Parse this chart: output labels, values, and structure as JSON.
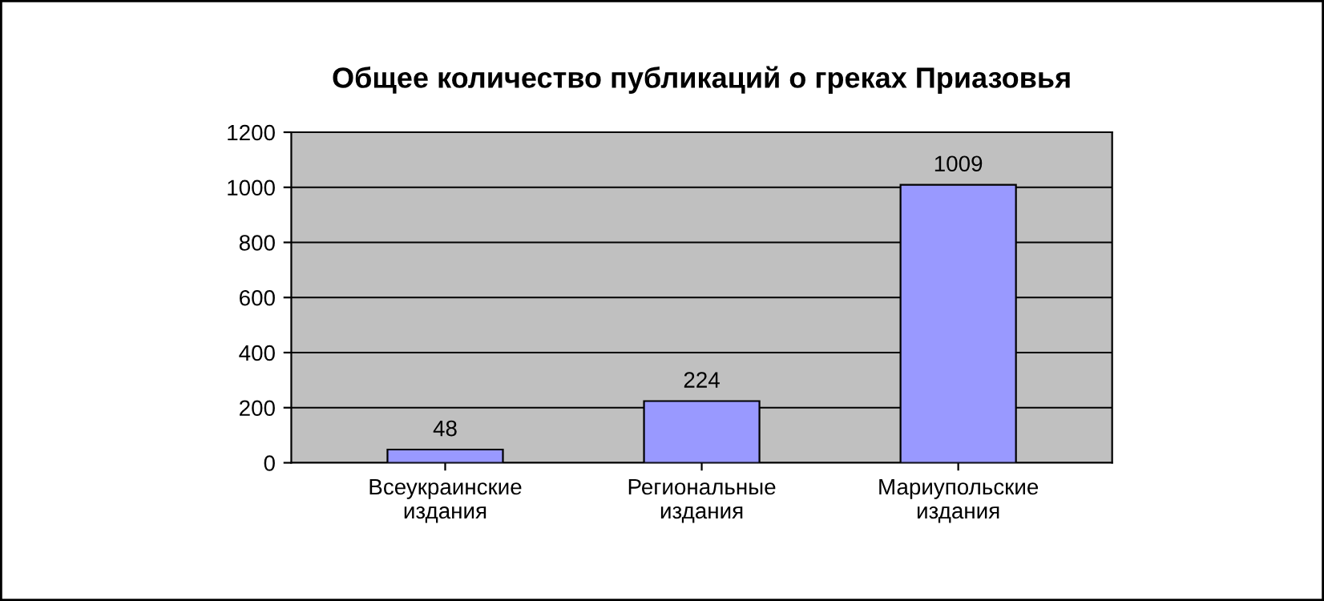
{
  "chart_data": {
    "type": "bar",
    "title": "Общее количество публикаций о греках Приазовья",
    "categories": [
      "Всеукраинские\nиздания",
      "Региональные\nиздания",
      "Мариупольские\nиздания"
    ],
    "values": [
      48,
      224,
      1009
    ],
    "color": "#9999ff",
    "ylim": [
      0,
      1200
    ],
    "yticks": [
      0,
      200,
      400,
      600,
      800,
      1000,
      1200
    ],
    "grid": "y",
    "data_labels": true
  }
}
